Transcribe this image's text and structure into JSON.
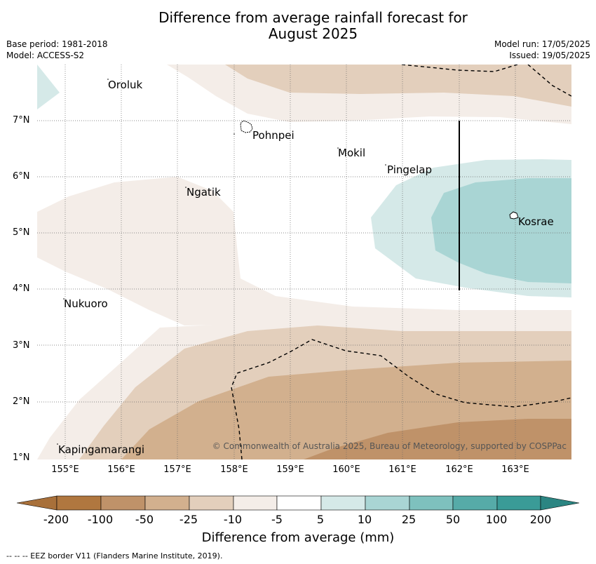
{
  "title_line1": "Difference from average rainfall forecast for",
  "title_line2": "August 2025",
  "meta": {
    "base_period": "Base period: 1981-2018",
    "model": "Model: ACCESS-S2",
    "model_run": "Model run: 17/05/2025",
    "issued": "Issued: 19/05/2025"
  },
  "places": [
    {
      "id": "oroluk",
      "name": "Oroluk"
    },
    {
      "id": "pohnpei",
      "name": "Pohnpei"
    },
    {
      "id": "mokil",
      "name": "Mokil"
    },
    {
      "id": "pingelap",
      "name": "Pingelap"
    },
    {
      "id": "ngatik",
      "name": "Ngatik"
    },
    {
      "id": "kosrae",
      "name": "Kosrae"
    },
    {
      "id": "nukuoro",
      "name": "Nukuoro"
    },
    {
      "id": "kapingamarangi",
      "name": "Kapingamarangi"
    }
  ],
  "lat_ticks": [
    "7°N",
    "6°N",
    "5°N",
    "4°N",
    "3°N",
    "2°N",
    "1°N"
  ],
  "lon_ticks": [
    "155°E",
    "156°E",
    "157°E",
    "158°E",
    "159°E",
    "160°E",
    "161°E",
    "162°E",
    "163°E"
  ],
  "copyright": "© Commonwealth of Australia 2025, Bureau of Meteorology, supported by COSPPac",
  "colorbar": {
    "labels": [
      "-200",
      "-100",
      "-50",
      "-25",
      "-10",
      "-5",
      "5",
      "10",
      "25",
      "50",
      "100",
      "200"
    ],
    "colors": [
      "#a8703a",
      "#b0773f",
      "#bf9269",
      "#d2b08e",
      "#e3cfbc",
      "#f4ede8",
      "#ffffff",
      "#d5e9e8",
      "#a9d5d4",
      "#7ec1be",
      "#56aba8",
      "#3a9b97",
      "#2b8582"
    ],
    "title": "Difference from average (mm)"
  },
  "legend_note": "--  --  -- EEZ border V11 (Flanders Marine Institute, 2019)."
}
